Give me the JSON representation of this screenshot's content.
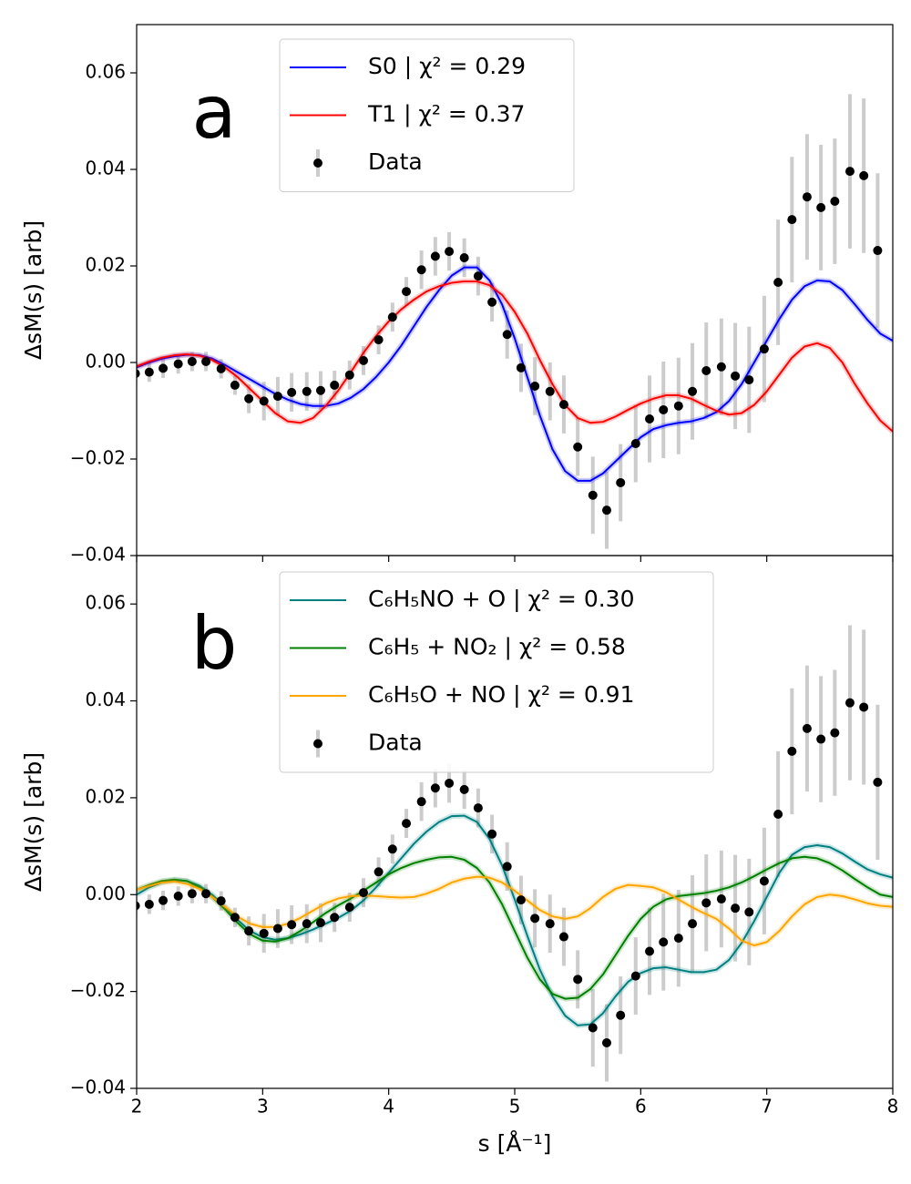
{
  "chart_data": [
    {
      "type": "line",
      "panel_label": "a",
      "ylabel": "ΔsM(s) [arb]",
      "xlim": [
        2,
        8
      ],
      "xticks": [
        2,
        3,
        4,
        5,
        6,
        7,
        8
      ],
      "ylim": [
        -0.04,
        0.07
      ],
      "yticks": [
        {
          "value": -0.04,
          "label": "−0.04"
        },
        {
          "value": -0.02,
          "label": "−0.02"
        },
        {
          "value": 0,
          "label": "0.00"
        },
        {
          "value": 0.02,
          "label": "0.02"
        },
        {
          "value": 0.04,
          "label": "0.04"
        },
        {
          "value": 0.06,
          "label": "0.06"
        }
      ],
      "x": [
        2.0,
        2.1,
        2.2,
        2.3,
        2.4,
        2.5,
        2.6,
        2.7,
        2.8,
        2.9,
        3.0,
        3.1,
        3.2,
        3.3,
        3.4,
        3.5,
        3.6,
        3.7,
        3.8,
        3.9,
        4.0,
        4.1,
        4.2,
        4.3,
        4.4,
        4.5,
        4.6,
        4.7,
        4.8,
        4.9,
        5.0,
        5.1,
        5.2,
        5.3,
        5.4,
        5.5,
        5.6,
        5.7,
        5.8,
        5.9,
        6.0,
        6.1,
        6.2,
        6.3,
        6.4,
        6.5,
        6.6,
        6.7,
        6.8,
        6.9,
        7.0,
        7.1,
        7.2,
        7.3,
        7.4,
        7.5,
        7.6,
        7.7,
        7.8,
        7.9,
        8.0
      ],
      "series": [
        {
          "name": "S0 | χ² = 0.29",
          "color": "#0000ff",
          "values": [
            -0.001,
            0.0,
            0.0008,
            0.0013,
            0.0016,
            0.0015,
            0.0008,
            -0.0005,
            -0.002,
            -0.0035,
            -0.005,
            -0.0065,
            -0.0077,
            -0.0086,
            -0.009,
            -0.009,
            -0.0085,
            -0.0073,
            -0.0055,
            -0.003,
            0.0,
            0.0035,
            0.0075,
            0.0115,
            0.015,
            0.018,
            0.0197,
            0.0197,
            0.017,
            0.012,
            0.005,
            -0.003,
            -0.011,
            -0.018,
            -0.0225,
            -0.0245,
            -0.0245,
            -0.023,
            -0.0205,
            -0.018,
            -0.0155,
            -0.0138,
            -0.013,
            -0.0125,
            -0.0122,
            -0.0115,
            -0.0103,
            -0.008,
            -0.0045,
            0.0,
            0.0045,
            0.009,
            0.013,
            0.0158,
            0.017,
            0.0168,
            0.015,
            0.012,
            0.0088,
            0.006,
            0.0045
          ]
        },
        {
          "name": "T1 | χ² = 0.37",
          "color": "#ff0000",
          "values": [
            -0.0008,
            0.0002,
            0.001,
            0.0015,
            0.0017,
            0.0014,
            0.0005,
            -0.001,
            -0.003,
            -0.0055,
            -0.008,
            -0.0105,
            -0.0122,
            -0.0125,
            -0.0115,
            -0.009,
            -0.0058,
            -0.002,
            0.002,
            0.0055,
            0.0085,
            0.011,
            0.013,
            0.0147,
            0.0158,
            0.0165,
            0.0168,
            0.0168,
            0.016,
            0.014,
            0.0105,
            0.006,
            0.0005,
            -0.0045,
            -0.0088,
            -0.0115,
            -0.0125,
            -0.0123,
            -0.0112,
            -0.0098,
            -0.0085,
            -0.0075,
            -0.0068,
            -0.0068,
            -0.0075,
            -0.0088,
            -0.01,
            -0.0108,
            -0.0105,
            -0.0088,
            -0.006,
            -0.0025,
            0.001,
            0.0033,
            0.004,
            0.003,
            0.0,
            -0.0045,
            -0.0085,
            -0.012,
            -0.0143
          ]
        },
        {
          "name": "Data",
          "color": "#000000",
          "error_color": "#cccccc",
          "x": [
            1.99,
            2.1,
            2.21,
            2.33,
            2.44,
            2.55,
            2.67,
            2.78,
            2.89,
            3.01,
            3.12,
            3.23,
            3.35,
            3.46,
            3.57,
            3.69,
            3.8,
            3.92,
            4.03,
            4.14,
            4.26,
            4.37,
            4.48,
            4.6,
            4.71,
            4.82,
            4.94,
            5.05,
            5.16,
            5.28,
            5.39,
            5.5,
            5.62,
            5.73,
            5.84,
            5.96,
            6.07,
            6.18,
            6.3,
            6.41,
            6.52,
            6.64,
            6.75,
            6.86,
            6.98,
            7.09,
            7.2,
            7.32,
            7.43,
            7.54,
            7.66,
            7.77,
            7.88
          ],
          "values": [
            -0.0023,
            -0.002,
            -0.0012,
            -0.0003,
            0.0002,
            0.0002,
            -0.0013,
            -0.0047,
            -0.0075,
            -0.008,
            -0.007,
            -0.0062,
            -0.006,
            -0.0058,
            -0.0047,
            -0.0026,
            0.0004,
            0.0047,
            0.0094,
            0.0147,
            0.0192,
            0.022,
            0.023,
            0.0217,
            0.0179,
            0.0125,
            0.0058,
            -0.0011,
            -0.0049,
            -0.006,
            -0.0087,
            -0.0175,
            -0.0275,
            -0.0306,
            -0.0249,
            -0.0168,
            -0.0117,
            -0.0098,
            -0.009,
            -0.006,
            -0.0017,
            -0.0009,
            -0.0028,
            -0.0036,
            0.0028,
            0.0166,
            0.0296,
            0.0343,
            0.0321,
            0.0334,
            0.0396,
            0.0387,
            0.0232
          ],
          "errors": [
            0.002,
            0.002,
            0.002,
            0.002,
            0.002,
            0.002,
            0.002,
            0.002,
            0.003,
            0.004,
            0.004,
            0.004,
            0.004,
            0.004,
            0.003,
            0.003,
            0.003,
            0.003,
            0.003,
            0.003,
            0.004,
            0.004,
            0.004,
            0.004,
            0.004,
            0.004,
            0.005,
            0.005,
            0.006,
            0.006,
            0.006,
            0.006,
            0.008,
            0.008,
            0.008,
            0.008,
            0.009,
            0.01,
            0.01,
            0.01,
            0.01,
            0.01,
            0.011,
            0.011,
            0.011,
            0.013,
            0.013,
            0.013,
            0.013,
            0.013,
            0.016,
            0.016,
            0.016
          ]
        }
      ]
    },
    {
      "type": "line",
      "panel_label": "b",
      "ylabel": "ΔsM(s) [arb]",
      "xlabel": "s [Å⁻¹]",
      "xlim": [
        2,
        8
      ],
      "xticks": [
        2,
        3,
        4,
        5,
        6,
        7,
        8
      ],
      "ylim": [
        -0.04,
        0.07
      ],
      "yticks": [
        {
          "value": -0.04,
          "label": "−0.04"
        },
        {
          "value": -0.02,
          "label": "−0.02"
        },
        {
          "value": 0,
          "label": "0.00"
        },
        {
          "value": 0.02,
          "label": "0.02"
        },
        {
          "value": 0.04,
          "label": "0.04"
        },
        {
          "value": 0.06,
          "label": "0.06"
        }
      ],
      "x": [
        2.0,
        2.1,
        2.2,
        2.3,
        2.4,
        2.5,
        2.6,
        2.7,
        2.8,
        2.9,
        3.0,
        3.1,
        3.2,
        3.3,
        3.4,
        3.5,
        3.6,
        3.7,
        3.8,
        3.9,
        4.0,
        4.1,
        4.2,
        4.3,
        4.4,
        4.5,
        4.6,
        4.7,
        4.8,
        4.9,
        5.0,
        5.1,
        5.2,
        5.3,
        5.4,
        5.5,
        5.6,
        5.7,
        5.8,
        5.9,
        6.0,
        6.1,
        6.2,
        6.3,
        6.4,
        6.5,
        6.6,
        6.7,
        6.8,
        6.9,
        7.0,
        7.1,
        7.2,
        7.3,
        7.4,
        7.5,
        7.6,
        7.7,
        7.8,
        7.9,
        8.0
      ],
      "series": [
        {
          "name": "C₆H₅NO + O | χ² = 0.30",
          "color": "#008080",
          "values": [
            0.0,
            0.0015,
            0.0025,
            0.003,
            0.0028,
            0.0018,
            0.0,
            -0.0025,
            -0.0052,
            -0.0075,
            -0.0088,
            -0.0093,
            -0.009,
            -0.0082,
            -0.0072,
            -0.006,
            -0.0048,
            -0.0033,
            -0.0012,
            0.0015,
            0.0045,
            0.0075,
            0.0105,
            0.013,
            0.015,
            0.0162,
            0.0163,
            0.015,
            0.0115,
            0.006,
            -0.001,
            -0.0085,
            -0.0155,
            -0.021,
            -0.025,
            -0.027,
            -0.0268,
            -0.0245,
            -0.021,
            -0.018,
            -0.0162,
            -0.0152,
            -0.015,
            -0.0155,
            -0.016,
            -0.016,
            -0.0155,
            -0.0135,
            -0.01,
            -0.0055,
            -0.0005,
            0.0045,
            0.0082,
            0.0098,
            0.0102,
            0.0098,
            0.0085,
            0.0068,
            0.0052,
            0.0042,
            0.0035
          ]
        },
        {
          "name": "C₆H₅ + NO₂ | χ² = 0.58",
          "color": "#008000",
          "values": [
            0.001,
            0.002,
            0.0028,
            0.0031,
            0.0028,
            0.0015,
            -0.0005,
            -0.003,
            -0.0058,
            -0.0082,
            -0.0095,
            -0.0097,
            -0.009,
            -0.0075,
            -0.0057,
            -0.0038,
            -0.0022,
            -0.0008,
            0.0008,
            0.0025,
            0.0042,
            0.0055,
            0.0065,
            0.0072,
            0.0077,
            0.0078,
            0.0072,
            0.0055,
            0.0025,
            -0.002,
            -0.0075,
            -0.013,
            -0.0175,
            -0.0205,
            -0.0215,
            -0.0213,
            -0.0195,
            -0.0165,
            -0.0125,
            -0.0085,
            -0.005,
            -0.0025,
            -0.001,
            -0.0003,
            0.0,
            0.0003,
            0.0008,
            0.0015,
            0.0025,
            0.0038,
            0.0052,
            0.0065,
            0.0075,
            0.0078,
            0.0075,
            0.0065,
            0.005,
            0.0032,
            0.0015,
            0.0,
            -0.0005
          ]
        },
        {
          "name": "C₆H₅O + NO | χ² = 0.91",
          "color": "#ffa500",
          "values": [
            0.001,
            0.0018,
            0.0025,
            0.0027,
            0.0022,
            0.0012,
            -0.0005,
            -0.0025,
            -0.0045,
            -0.006,
            -0.0067,
            -0.0067,
            -0.006,
            -0.0048,
            -0.0033,
            -0.0018,
            -0.0008,
            -0.0003,
            -0.0002,
            -0.0003,
            -0.0005,
            -0.0006,
            -0.0005,
            0.0002,
            0.0012,
            0.0025,
            0.0033,
            0.0037,
            0.0035,
            0.0025,
            0.0008,
            -0.0012,
            -0.0032,
            -0.0045,
            -0.005,
            -0.0045,
            -0.0028,
            -0.0005,
            0.0012,
            0.002,
            0.0018,
            0.0015,
            0.0005,
            -0.001,
            -0.0025,
            -0.0038,
            -0.005,
            -0.007,
            -0.0095,
            -0.0105,
            -0.0098,
            -0.0075,
            -0.0045,
            -0.002,
            -0.0005,
            0.0,
            -0.0003,
            -0.001,
            -0.0018,
            -0.0023,
            -0.0025
          ]
        },
        {
          "name": "Data",
          "color": "#000000",
          "error_color": "#cccccc",
          "x": [
            1.99,
            2.1,
            2.21,
            2.33,
            2.44,
            2.55,
            2.67,
            2.78,
            2.89,
            3.01,
            3.12,
            3.23,
            3.35,
            3.46,
            3.57,
            3.69,
            3.8,
            3.92,
            4.03,
            4.14,
            4.26,
            4.37,
            4.48,
            4.6,
            4.71,
            4.82,
            4.94,
            5.05,
            5.16,
            5.28,
            5.39,
            5.5,
            5.62,
            5.73,
            5.84,
            5.96,
            6.07,
            6.18,
            6.3,
            6.41,
            6.52,
            6.64,
            6.75,
            6.86,
            6.98,
            7.09,
            7.2,
            7.32,
            7.43,
            7.54,
            7.66,
            7.77,
            7.88
          ],
          "values": [
            -0.0023,
            -0.002,
            -0.0012,
            -0.0003,
            0.0002,
            0.0002,
            -0.0013,
            -0.0047,
            -0.0075,
            -0.008,
            -0.007,
            -0.0062,
            -0.006,
            -0.0058,
            -0.0047,
            -0.0026,
            0.0004,
            0.0047,
            0.0094,
            0.0147,
            0.0192,
            0.022,
            0.023,
            0.0217,
            0.0179,
            0.0125,
            0.0058,
            -0.0011,
            -0.0049,
            -0.006,
            -0.0087,
            -0.0175,
            -0.0275,
            -0.0306,
            -0.0249,
            -0.0168,
            -0.0117,
            -0.0098,
            -0.009,
            -0.006,
            -0.0017,
            -0.0009,
            -0.0028,
            -0.0036,
            0.0028,
            0.0166,
            0.0296,
            0.0343,
            0.0321,
            0.0334,
            0.0396,
            0.0387,
            0.0232
          ],
          "errors": [
            0.002,
            0.002,
            0.002,
            0.002,
            0.002,
            0.002,
            0.002,
            0.002,
            0.003,
            0.004,
            0.004,
            0.004,
            0.004,
            0.004,
            0.003,
            0.003,
            0.003,
            0.003,
            0.003,
            0.003,
            0.004,
            0.004,
            0.004,
            0.004,
            0.004,
            0.004,
            0.005,
            0.005,
            0.006,
            0.006,
            0.006,
            0.006,
            0.008,
            0.008,
            0.008,
            0.008,
            0.009,
            0.01,
            0.01,
            0.01,
            0.01,
            0.01,
            0.011,
            0.011,
            0.011,
            0.013,
            0.013,
            0.013,
            0.013,
            0.013,
            0.016,
            0.016,
            0.016
          ]
        }
      ]
    }
  ]
}
